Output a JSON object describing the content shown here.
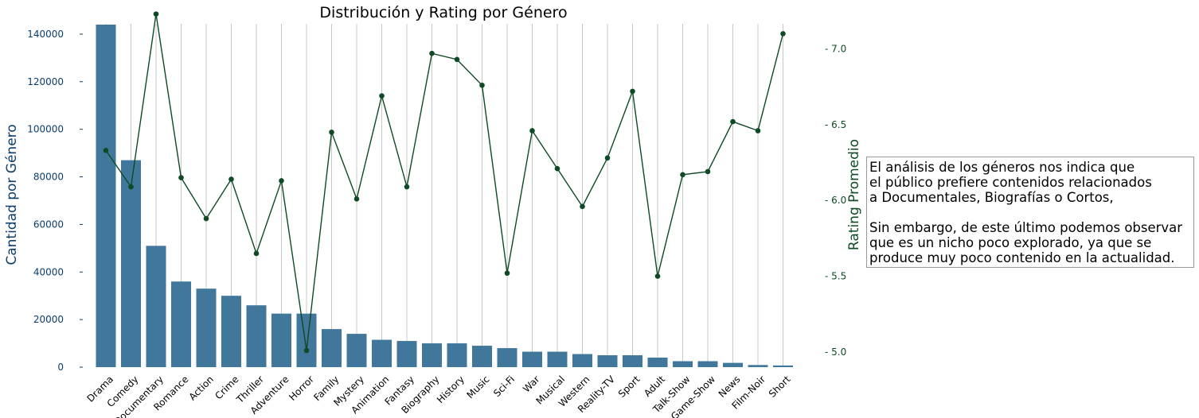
{
  "chart_data": {
    "type": "bar+line",
    "title": "Distribución y Rating por Género",
    "categories": [
      "Drama",
      "Comedy",
      "Documentary",
      "Romance",
      "Action",
      "Crime",
      "Thriller",
      "Adventure",
      "Horror",
      "Family",
      "Mystery",
      "Animation",
      "Fantasy",
      "Biography",
      "History",
      "Music",
      "Sci-Fi",
      "War",
      "Musical",
      "Western",
      "Reality-TV",
      "Sport",
      "Adult",
      "Talk-Show",
      "Game-Show",
      "News",
      "Film-Noir",
      "Short"
    ],
    "series": [
      {
        "name": "Cantidad por Género",
        "axis": "left",
        "type": "bar",
        "color": "#41779a",
        "values": [
          144000,
          87000,
          51000,
          36000,
          33000,
          30000,
          26000,
          22500,
          22500,
          16000,
          14000,
          11500,
          11000,
          10000,
          10000,
          9000,
          8000,
          6500,
          6500,
          5500,
          5000,
          5000,
          4000,
          2500,
          2500,
          1800,
          900,
          700
        ]
      },
      {
        "name": "Rating Promedio",
        "axis": "right",
        "type": "line",
        "color": "#0d4a25",
        "values": [
          6.33,
          6.09,
          7.23,
          6.15,
          5.88,
          6.14,
          5.65,
          6.13,
          5.01,
          6.45,
          6.01,
          6.69,
          6.09,
          6.97,
          6.93,
          6.76,
          5.52,
          6.46,
          6.21,
          5.96,
          6.28,
          6.72,
          5.5,
          6.17,
          6.19,
          6.52,
          6.46,
          7.1
        ]
      }
    ],
    "ylabel": "Cantidad por Género",
    "ylabel_right": "Rating Promedio",
    "ylim": [
      0,
      151000
    ],
    "ylim_right": [
      4.9,
      7.27
    ],
    "yticks": [
      0,
      20000,
      40000,
      60000,
      80000,
      100000,
      120000,
      140000
    ],
    "yticks_right": [
      5.0,
      5.5,
      6.0,
      6.5,
      7.0
    ],
    "grid": "vertical",
    "colors": {
      "bar": "#41779a",
      "line": "#0d4a25",
      "left_axis_text": "#0b3d6b",
      "right_axis_text": "#0d4a25",
      "grid": "#c8c8c8"
    }
  },
  "annotation": {
    "lines_1": [
      "El análisis de los géneros nos indica que",
      "el público prefiere contenidos relacionados",
      "a Documentales, Biografías o Cortos,"
    ],
    "lines_2": [
      "Sin embargo, de este último podemos observar",
      "que es un nicho poco explorado, ya que se",
      "produce muy poco contenido en la actualidad."
    ]
  }
}
